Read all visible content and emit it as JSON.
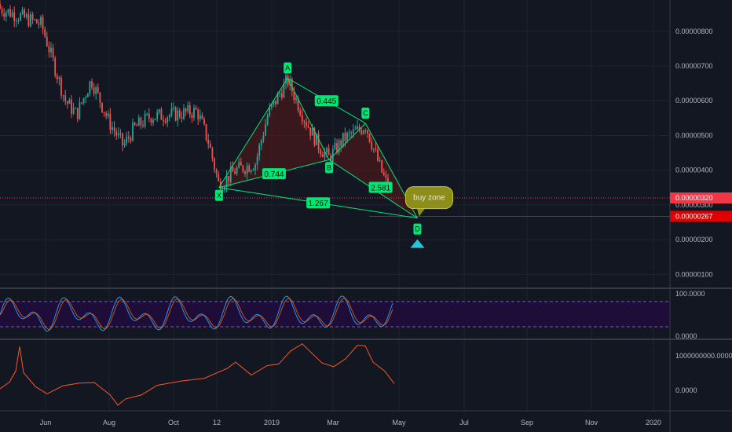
{
  "chart_data": {
    "type": "candlestick",
    "x_ticks": [
      "Jun",
      "Aug",
      "Oct",
      "12",
      "2019",
      "Mar",
      "May",
      "Jul",
      "Sep",
      "Nov",
      "2020"
    ],
    "price_axis": {
      "ticks": [
        "0.00000800",
        "0.00000700",
        "0.00000600",
        "0.00000500",
        "0.00000400",
        "0.00000300",
        "0.00000200",
        "0.00000100"
      ],
      "range": [
        6e-07,
        8.9e-06
      ]
    },
    "price_markers": [
      {
        "value": "0.00000320",
        "color": "#f23645"
      },
      {
        "value": "0.00000267",
        "color": "#e10000"
      }
    ],
    "pattern": {
      "points": [
        {
          "label": "X",
          "date": "2018-11-15",
          "price": 3.5e-06
        },
        {
          "label": "A",
          "date": "2019-01-20",
          "price": 6.65e-06
        },
        {
          "label": "B",
          "date": "2019-03-01",
          "price": 4.3e-06
        },
        {
          "label": "C",
          "date": "2019-04-05",
          "price": 5.35e-06
        },
        {
          "label": "D",
          "date": "2019-05-25",
          "price": 2.62e-06
        }
      ],
      "ratios": [
        {
          "value": "0.744",
          "between": "X-B"
        },
        {
          "value": "0.445",
          "between": "A-C"
        },
        {
          "value": "1.267",
          "between": "X-D"
        },
        {
          "value": "2.581",
          "between": "B-D"
        }
      ],
      "callout": "buy zone",
      "pattern_color": "#00e676",
      "fill_color": "#5a1a1a"
    },
    "stoch_panel": {
      "ticks": [
        "100.0000",
        "0.0000"
      ],
      "band": [
        20,
        80
      ]
    },
    "volume_panel": {
      "ticks": [
        "1000000000.0000",
        "0.0000"
      ]
    }
  }
}
